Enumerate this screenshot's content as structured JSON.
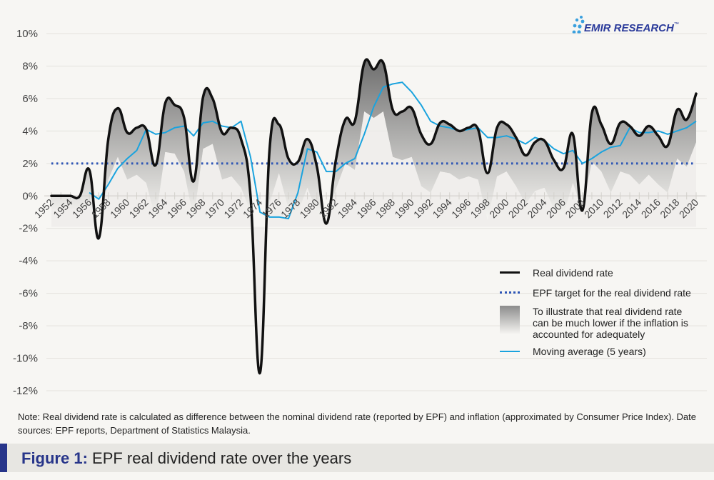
{
  "logo": {
    "text": "EMIR RESEARCH",
    "tm": "™"
  },
  "chart_data": {
    "type": "line",
    "title": "EPF real dividend rate over the years",
    "xlabel": "",
    "ylabel": "",
    "ylim": [
      -12,
      10
    ],
    "yticks": [
      10,
      8,
      6,
      4,
      2,
      0,
      -2,
      -4,
      -6,
      -8,
      -10,
      -12
    ],
    "ytick_labels": [
      "10%",
      "8%",
      "6%",
      "4%",
      "2%",
      "0%",
      "-2%",
      "-4%",
      "-6%",
      "-8%",
      "-10%",
      "-12%"
    ],
    "x": [
      1952,
      1953,
      1954,
      1955,
      1956,
      1957,
      1958,
      1959,
      1960,
      1961,
      1962,
      1963,
      1964,
      1965,
      1966,
      1967,
      1968,
      1969,
      1970,
      1971,
      1972,
      1973,
      1974,
      1975,
      1976,
      1977,
      1978,
      1979,
      1980,
      1981,
      1982,
      1983,
      1984,
      1985,
      1986,
      1987,
      1988,
      1989,
      1990,
      1991,
      1992,
      1993,
      1994,
      1995,
      1996,
      1997,
      1998,
      1999,
      2000,
      2001,
      2002,
      2003,
      2004,
      2005,
      2006,
      2007,
      2008,
      2009,
      2010,
      2011,
      2012,
      2013,
      2014,
      2015,
      2016,
      2017,
      2018,
      2019,
      2020
    ],
    "xtick_labels": [
      "1952",
      "1954",
      "1956",
      "1958",
      "1960",
      "1962",
      "1964",
      "1966",
      "1968",
      "1970",
      "1972",
      "1974",
      "1976",
      "1978",
      "1980",
      "1982",
      "1984",
      "1986",
      "1988",
      "1990",
      "1992",
      "1994",
      "1996",
      "1998",
      "2000",
      "2002",
      "2004",
      "2006",
      "2008",
      "2010",
      "2012",
      "2014",
      "2016",
      "2018",
      "2020"
    ],
    "grid": true,
    "legend_position": "bottom-right",
    "series": [
      {
        "name": "Real dividend rate",
        "style": "line",
        "color": "#111111",
        "values": [
          0,
          0,
          0,
          0,
          1.6,
          -2.6,
          3.5,
          5.4,
          3.9,
          4.2,
          4.1,
          1.9,
          5.7,
          5.6,
          4.8,
          0.9,
          6.1,
          6.0,
          3.9,
          4.2,
          3.5,
          0.0,
          -10.9,
          2.8,
          4.4,
          2.3,
          2.1,
          3.5,
          1.8,
          -1.7,
          2.2,
          4.7,
          4.6,
          8.2,
          7.8,
          8.2,
          5.3,
          5.2,
          5.4,
          3.8,
          3.2,
          4.5,
          4.4,
          4.0,
          4.2,
          4.1,
          1.4,
          4.2,
          4.4,
          3.6,
          2.5,
          3.3,
          3.4,
          2.2,
          1.7,
          3.8,
          -0.9,
          5.1,
          4.4,
          3.2,
          4.5,
          4.3,
          3.7,
          4.3,
          3.7,
          3.1,
          5.3,
          4.7,
          6.3
        ]
      },
      {
        "name": "EPF target for the real dividend rate",
        "style": "dotted",
        "color": "#2c54b5",
        "values": [
          2,
          2,
          2,
          2,
          2,
          2,
          2,
          2,
          2,
          2,
          2,
          2,
          2,
          2,
          2,
          2,
          2,
          2,
          2,
          2,
          2,
          2,
          2,
          2,
          2,
          2,
          2,
          2,
          2,
          2,
          2,
          2,
          2,
          2,
          2,
          2,
          2,
          2,
          2,
          2,
          2,
          2,
          2,
          2,
          2,
          2,
          2,
          2,
          2,
          2,
          2,
          2,
          2,
          2,
          2,
          2,
          2,
          2,
          2,
          2,
          2,
          2,
          2,
          2,
          2,
          2,
          2,
          2,
          2
        ]
      },
      {
        "name": "To illustrate that real dividend rate can be much lower if the inflation is accounted for adequately",
        "style": "band",
        "color": "#8c8c8c",
        "lower_values": [
          -0.8,
          -0.8,
          -0.8,
          -0.8,
          -0.6,
          -2.6,
          1.0,
          2.4,
          1.0,
          1.3,
          0.8,
          -1.5,
          2.7,
          2.6,
          1.5,
          -1.5,
          2.9,
          3.2,
          1.0,
          1.2,
          0.5,
          -1.0,
          -10.9,
          -0.5,
          1.4,
          -0.8,
          -1.0,
          0.5,
          -1.0,
          -1.7,
          0.4,
          2.0,
          1.6,
          5.2,
          4.8,
          5.2,
          2.4,
          2.2,
          2.4,
          0.6,
          0.2,
          1.5,
          1.4,
          1.0,
          1.2,
          1.0,
          -1.5,
          1.2,
          1.5,
          0.6,
          -0.5,
          0.3,
          0.5,
          -0.8,
          -1.2,
          0.8,
          -0.9,
          2.1,
          1.5,
          0.2,
          1.5,
          1.3,
          0.7,
          1.3,
          0.7,
          0.2,
          2.3,
          1.8,
          3.3
        ]
      },
      {
        "name": "Moving average (5 years)",
        "style": "line",
        "color": "#1aa3de",
        "start_year": 1956,
        "values": [
          0.2,
          -0.2,
          0.7,
          1.7,
          2.3,
          2.8,
          4.1,
          3.8,
          3.9,
          4.2,
          4.3,
          3.7,
          4.5,
          4.6,
          4.3,
          4.2,
          4.6,
          2.4,
          -1.0,
          -1.3,
          -1.3,
          -1.4,
          0.2,
          2.9,
          2.7,
          1.5,
          1.5,
          2.0,
          2.3,
          3.8,
          5.5,
          6.7,
          6.9,
          7.0,
          6.4,
          5.6,
          4.6,
          4.3,
          4.2,
          4.0,
          4.1,
          4.2,
          3.6,
          3.6,
          3.7,
          3.5,
          3.2,
          3.6,
          3.4,
          2.9,
          2.6,
          2.8,
          2.0,
          2.3,
          2.7,
          3.0,
          3.1,
          4.2,
          3.9,
          3.9,
          4.0,
          3.8,
          4.0,
          4.2,
          4.6
        ]
      }
    ]
  },
  "legend": {
    "items": [
      {
        "label": "Real dividend rate"
      },
      {
        "label": "EPF target for the real dividend rate"
      },
      {
        "label": "To illustrate that real dividend rate can be much lower if the inflation is accounted for adequately"
      },
      {
        "label": "Moving average (5 years)"
      }
    ]
  },
  "note": "Note: Real dividend rate is calculated as difference between the nominal dividend rate (reported by EPF) and inflation (approximated by Consumer Price Index). Date sources: EPF reports, Department of Statistics Malaysia.",
  "caption": {
    "prefix": "Figure 1:",
    "text": " EPF real dividend rate over the years"
  }
}
